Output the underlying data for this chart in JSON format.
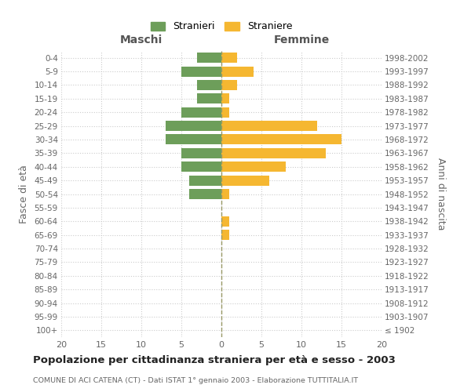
{
  "age_groups": [
    "100+",
    "95-99",
    "90-94",
    "85-89",
    "80-84",
    "75-79",
    "70-74",
    "65-69",
    "60-64",
    "55-59",
    "50-54",
    "45-49",
    "40-44",
    "35-39",
    "30-34",
    "25-29",
    "20-24",
    "15-19",
    "10-14",
    "5-9",
    "0-4"
  ],
  "birth_years": [
    "≤ 1902",
    "1903-1907",
    "1908-1912",
    "1913-1917",
    "1918-1922",
    "1923-1927",
    "1928-1932",
    "1933-1937",
    "1938-1942",
    "1943-1947",
    "1948-1952",
    "1953-1957",
    "1958-1962",
    "1963-1967",
    "1968-1972",
    "1973-1977",
    "1978-1982",
    "1983-1987",
    "1988-1992",
    "1993-1997",
    "1998-2002"
  ],
  "maschi": [
    0,
    0,
    0,
    0,
    0,
    0,
    0,
    0,
    0,
    0,
    4,
    4,
    5,
    5,
    7,
    7,
    5,
    3,
    3,
    5,
    3
  ],
  "femmine": [
    0,
    0,
    0,
    0,
    0,
    0,
    0,
    1,
    1,
    0,
    1,
    6,
    8,
    13,
    15,
    12,
    1,
    1,
    2,
    4,
    2
  ],
  "color_maschi": "#6d9e5a",
  "color_femmine": "#f5b731",
  "title": "Popolazione per cittadinanza straniera per età e sesso - 2003",
  "subtitle": "COMUNE DI ACI CATENA (CT) - Dati ISTAT 1° gennaio 2003 - Elaborazione TUTTITALIA.IT",
  "ylabel_left": "Fasce di età",
  "ylabel_right": "Anni di nascita",
  "xlabel_maschi": "Maschi",
  "xlabel_femmine": "Femmine",
  "legend_maschi": "Stranieri",
  "legend_femmine": "Straniere",
  "xlim": 20,
  "background_color": "#ffffff",
  "grid_color": "#cccccc"
}
